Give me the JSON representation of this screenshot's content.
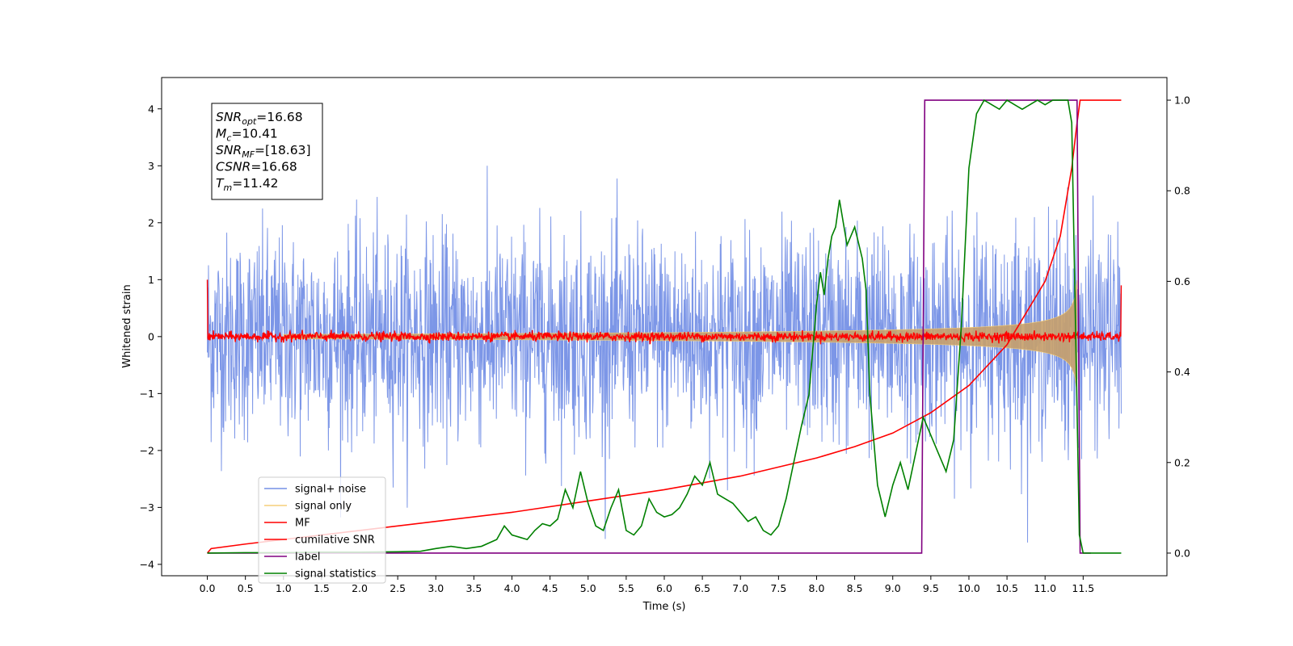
{
  "chart_data": {
    "type": "line",
    "xlabel": "Time (s)",
    "ylabel": "Whitened strain",
    "xlim": [
      -0.6,
      12.6
    ],
    "ylim": [
      -4.2,
      4.55
    ],
    "ylim_right": [
      -0.05,
      1.05
    ],
    "x_ticks": [
      0.0,
      0.5,
      1.0,
      1.5,
      2.0,
      2.5,
      3.0,
      3.5,
      4.0,
      4.5,
      5.0,
      5.5,
      6.0,
      6.5,
      7.0,
      7.5,
      8.0,
      8.5,
      9.0,
      9.5,
      10.0,
      10.5,
      11.0,
      11.5
    ],
    "x_tick_labels": [
      "0.0",
      "0.5",
      "1.0",
      "1.5",
      "2.0",
      "2.5",
      "3.0",
      "3.5",
      "4.0",
      "4.5",
      "5.0",
      "5.5",
      "6.0",
      "6.5",
      "7.0",
      "7.5",
      "8.0",
      "8.5",
      "9.0",
      "9.5",
      "10.0",
      "10.5",
      "11.0",
      "11.5"
    ],
    "y_ticks": [
      -4,
      -3,
      -2,
      -1,
      0,
      1,
      2,
      3,
      4
    ],
    "y_tick_labels": [
      "−4",
      "−3",
      "−2",
      "−1",
      "0",
      "1",
      "2",
      "3",
      "4"
    ],
    "y_right_ticks": [
      0.0,
      0.2,
      0.4,
      0.6,
      0.8,
      1.0
    ],
    "y_right_tick_labels": [
      "0.0",
      "0.2",
      "0.4",
      "0.6",
      "0.8",
      "1.0"
    ],
    "grid": false,
    "legend_placement": "lower-left",
    "legend": [
      {
        "label": "signal+ noise",
        "color": "#7590e6"
      },
      {
        "label": "signal only",
        "color": "#f5cf7a"
      },
      {
        "label": "MF",
        "color": "#ff0000"
      },
      {
        "label": "cumilative SNR",
        "color": "#ff0000"
      },
      {
        "label": "label",
        "color": "#800080"
      },
      {
        "label": "signal statistics",
        "color": "#008000"
      }
    ],
    "annotation_box": [
      {
        "name": "SNR",
        "sub": "opt",
        "value": "=16.68"
      },
      {
        "name": "M",
        "sub": "c",
        "value": "=10.41"
      },
      {
        "name": "SNR",
        "sub": "MF",
        "value": "=[18.63]"
      },
      {
        "name": "CSNR",
        "sub": "",
        "value": "=16.68"
      },
      {
        "name": "T",
        "sub": "m",
        "value": "=11.42"
      }
    ],
    "noise": {
      "x_start": 0.0,
      "x_end": 12.0,
      "sigma": 0.9
    },
    "signal_only": {
      "x_start": 1.0,
      "x_end": 11.42,
      "peak_amplitude": 1.3
    },
    "mf": {
      "x_start": 0.0,
      "x_end": 12.0,
      "start_value": 1.0,
      "end_value": 0.9,
      "level": 0.0
    },
    "label": {
      "axis": "right",
      "x": [
        0.0,
        9.38,
        9.42,
        11.42,
        11.46,
        11.6
      ],
      "y": [
        0.0,
        0.0,
        1.0,
        1.0,
        0.0,
        0.0
      ]
    },
    "cumulative_snr": {
      "axis": "right",
      "x": [
        0.0,
        0.05,
        0.5,
        1.0,
        2.0,
        3.0,
        4.0,
        5.0,
        6.0,
        7.0,
        8.0,
        8.5,
        9.0,
        9.5,
        10.0,
        10.5,
        11.0,
        11.2,
        11.35,
        11.42,
        11.46,
        12.0
      ],
      "y": [
        0.0,
        0.01,
        0.02,
        0.03,
        0.05,
        0.07,
        0.09,
        0.115,
        0.14,
        0.17,
        0.21,
        0.235,
        0.265,
        0.31,
        0.37,
        0.46,
        0.6,
        0.7,
        0.85,
        0.95,
        1.0,
        1.0
      ]
    },
    "signal_statistics": {
      "axis": "right",
      "x": [
        0.0,
        0.5,
        1.0,
        1.5,
        2.0,
        2.5,
        2.8,
        3.0,
        3.2,
        3.4,
        3.6,
        3.8,
        3.9,
        4.0,
        4.1,
        4.2,
        4.3,
        4.4,
        4.5,
        4.6,
        4.7,
        4.8,
        4.9,
        5.0,
        5.1,
        5.2,
        5.3,
        5.4,
        5.5,
        5.6,
        5.7,
        5.8,
        5.9,
        6.0,
        6.1,
        6.2,
        6.3,
        6.4,
        6.5,
        6.6,
        6.7,
        6.8,
        6.9,
        7.0,
        7.1,
        7.2,
        7.3,
        7.4,
        7.5,
        7.6,
        7.7,
        7.8,
        7.9,
        8.0,
        8.05,
        8.1,
        8.15,
        8.2,
        8.25,
        8.3,
        8.4,
        8.5,
        8.6,
        8.65,
        8.7,
        8.8,
        8.9,
        9.0,
        9.1,
        9.2,
        9.3,
        9.4,
        9.5,
        9.6,
        9.7,
        9.8,
        9.9,
        10.0,
        10.1,
        10.2,
        10.3,
        10.4,
        10.5,
        10.6,
        10.7,
        10.8,
        10.9,
        11.0,
        11.1,
        11.2,
        11.3,
        11.35,
        11.4,
        11.45,
        11.5,
        11.6,
        12.0
      ],
      "y": [
        0.0,
        0.001,
        0.001,
        0.002,
        0.002,
        0.003,
        0.004,
        0.01,
        0.015,
        0.01,
        0.015,
        0.03,
        0.06,
        0.04,
        0.035,
        0.03,
        0.05,
        0.065,
        0.06,
        0.075,
        0.14,
        0.1,
        0.18,
        0.11,
        0.06,
        0.05,
        0.1,
        0.14,
        0.05,
        0.04,
        0.06,
        0.12,
        0.09,
        0.08,
        0.085,
        0.1,
        0.13,
        0.17,
        0.15,
        0.2,
        0.13,
        0.12,
        0.11,
        0.09,
        0.07,
        0.08,
        0.05,
        0.04,
        0.06,
        0.12,
        0.2,
        0.28,
        0.35,
        0.55,
        0.62,
        0.57,
        0.65,
        0.7,
        0.72,
        0.78,
        0.68,
        0.72,
        0.65,
        0.58,
        0.35,
        0.15,
        0.08,
        0.15,
        0.2,
        0.14,
        0.22,
        0.3,
        0.26,
        0.22,
        0.18,
        0.25,
        0.5,
        0.85,
        0.97,
        1.0,
        0.99,
        0.98,
        1.0,
        0.99,
        0.98,
        0.99,
        1.0,
        0.99,
        1.0,
        1.0,
        1.0,
        0.95,
        0.5,
        0.04,
        0.0,
        0.0,
        0.0
      ]
    }
  }
}
